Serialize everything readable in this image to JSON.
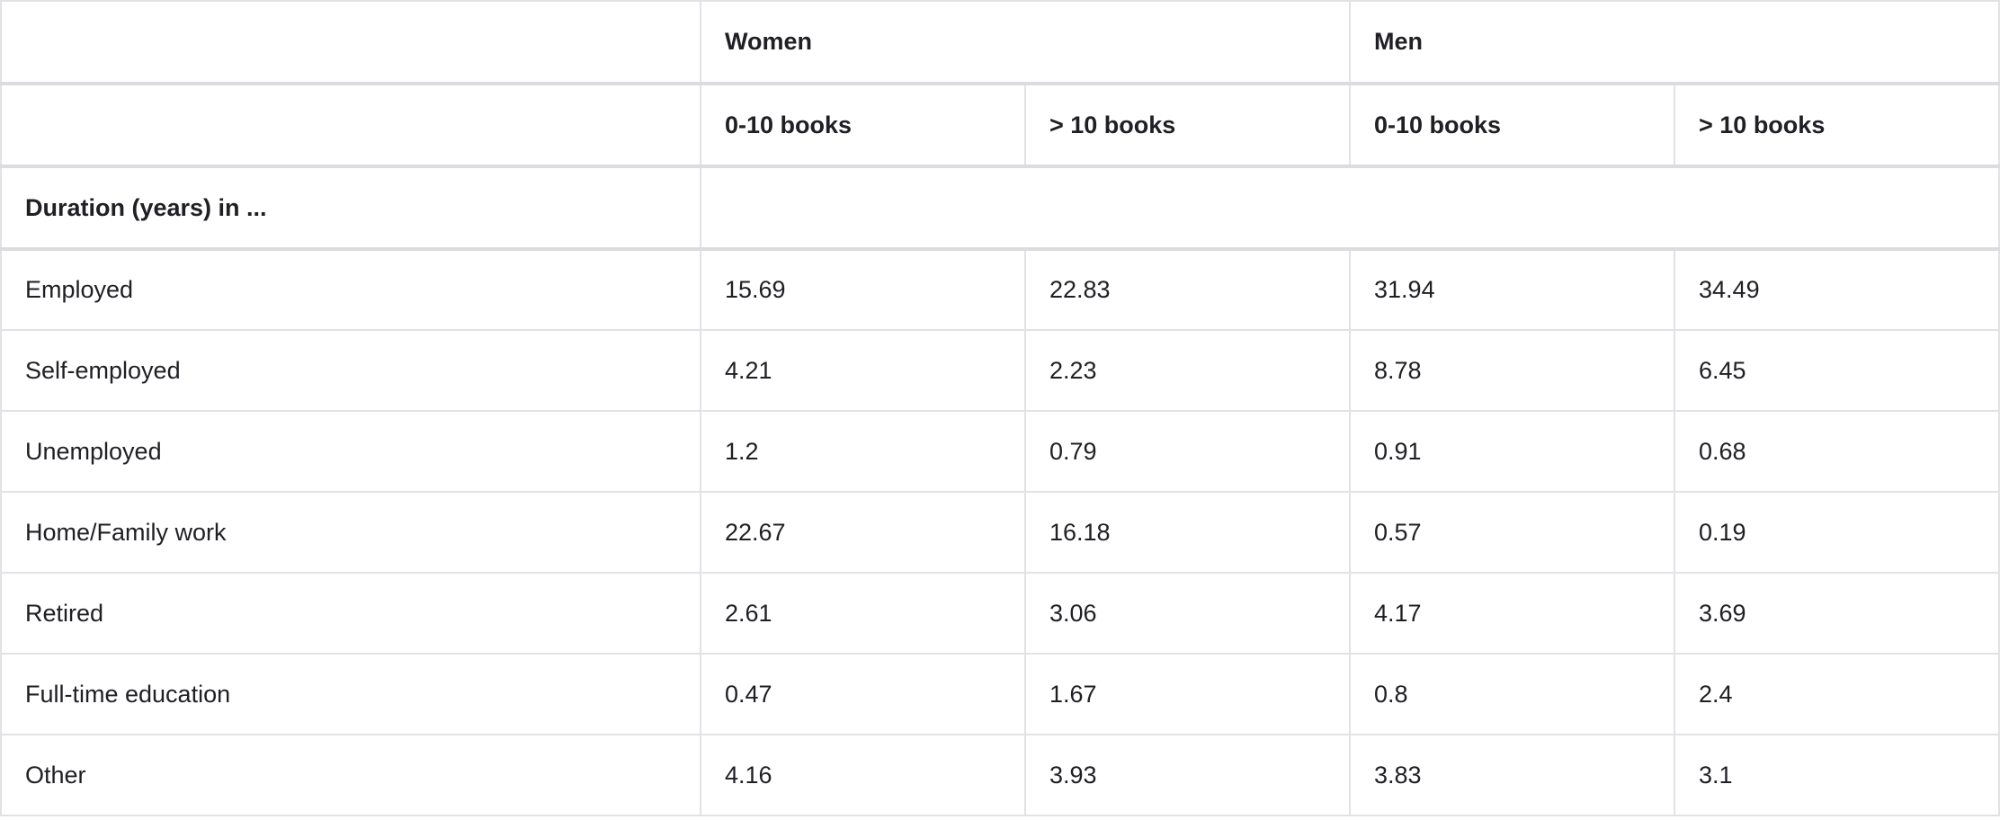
{
  "header": {
    "groups": [
      "Women",
      "Men"
    ],
    "subcolumns": [
      "0-10 books",
      "> 10 books",
      "0-10 books",
      "> 10 books"
    ]
  },
  "section_label": "Duration (years) in ...",
  "rows": [
    {
      "label": "Employed",
      "values": [
        "15.69",
        "22.83",
        "31.94",
        "34.49"
      ]
    },
    {
      "label": "Self-employed",
      "values": [
        "4.21",
        "2.23",
        "8.78",
        "6.45"
      ]
    },
    {
      "label": "Unemployed",
      "values": [
        "1.2",
        "0.79",
        "0.91",
        "0.68"
      ]
    },
    {
      "label": "Home/Family work",
      "values": [
        "22.67",
        "16.18",
        "0.57",
        "0.19"
      ]
    },
    {
      "label": "Retired",
      "values": [
        "2.61",
        "3.06",
        "4.17",
        "3.69"
      ]
    },
    {
      "label": "Full-time education",
      "values": [
        "0.47",
        "1.67",
        "0.8",
        "2.4"
      ]
    },
    {
      "label": "Other",
      "values": [
        "4.16",
        "3.93",
        "3.83",
        "3.1"
      ]
    }
  ]
}
